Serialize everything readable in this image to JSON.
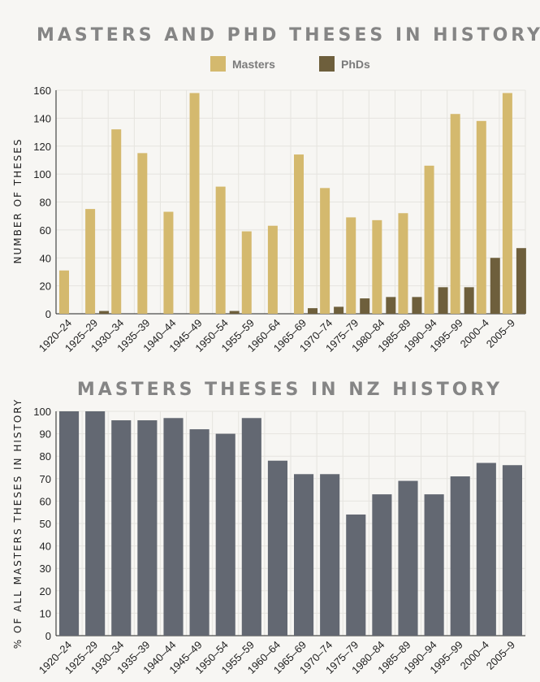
{
  "chart_data": [
    {
      "type": "bar",
      "title": "MASTERS AND PHD THESES IN HISTORY",
      "ylabel": "NUMBER OF THESES",
      "ylim": [
        0,
        160
      ],
      "yticks": [
        0,
        20,
        40,
        60,
        80,
        100,
        120,
        140,
        160
      ],
      "grid": true,
      "legend_position": "top-center",
      "categories": [
        "1920–24",
        "1925–29",
        "1930–34",
        "1935–39",
        "1940–44",
        "1945–49",
        "1950–54",
        "1955–59",
        "1960–64",
        "1965–69",
        "1970–74",
        "1975–79",
        "1980–84",
        "1985–89",
        "1990–94",
        "1995–99",
        "2000–4",
        "2005–9"
      ],
      "series": [
        {
          "name": "Masters",
          "color": "#d4b96e",
          "values": [
            31,
            75,
            132,
            115,
            73,
            158,
            91,
            59,
            63,
            114,
            90,
            69,
            67,
            72,
            106,
            143,
            138,
            158
          ]
        },
        {
          "name": "PhDs",
          "color": "#6e5f3c",
          "values": [
            0,
            2,
            0,
            0,
            0,
            0,
            2,
            0,
            0,
            4,
            5,
            11,
            12,
            12,
            19,
            19,
            40,
            47
          ]
        }
      ]
    },
    {
      "type": "bar",
      "title": "MASTERS THESES IN NZ HISTORY",
      "ylabel": "% OF ALL MASTERS THESES IN HISTORY",
      "ylim": [
        0,
        100
      ],
      "yticks": [
        0,
        10,
        20,
        30,
        40,
        50,
        60,
        70,
        80,
        90,
        100
      ],
      "grid": true,
      "categories": [
        "1920–24",
        "1925–29",
        "1930–34",
        "1935–39",
        "1940–44",
        "1945–49",
        "1950–54",
        "1955–59",
        "1960–64",
        "1965–69",
        "1970–74",
        "1975–79",
        "1980–84",
        "1985–89",
        "1990–94",
        "1995–99",
        "2000–4",
        "2005–9"
      ],
      "series": [
        {
          "color": "#636872",
          "values": [
            100,
            100,
            96,
            96,
            97,
            92,
            90,
            97,
            78,
            72,
            72,
            54,
            63,
            69,
            63,
            71,
            77,
            76
          ]
        }
      ]
    }
  ]
}
